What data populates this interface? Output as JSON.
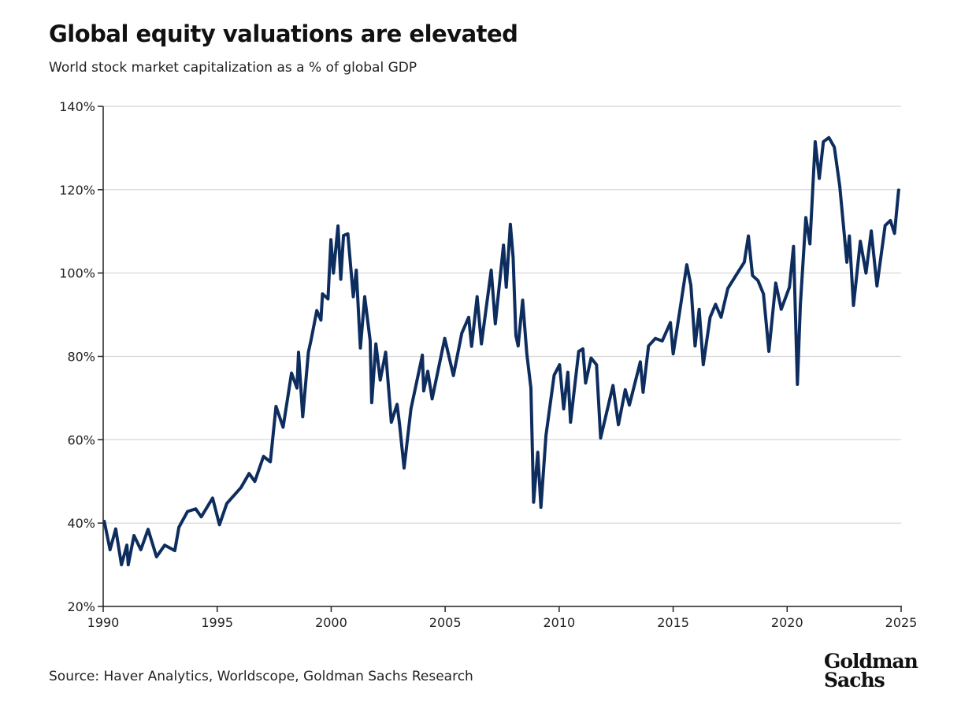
{
  "chart_data": {
    "type": "line",
    "title": "Global equity valuations are elevated",
    "subtitle": "World stock market capitalization as a % of global GDP",
    "source": "Source: Haver Analytics, Worldscope, Goldman Sachs Research",
    "logo": "Goldman Sachs",
    "xlabel": "",
    "ylabel": "",
    "xlim": [
      1990,
      2025
    ],
    "ylim": [
      20,
      140
    ],
    "x_ticks": [
      "1990",
      "1995",
      "2000",
      "2005",
      "2010",
      "2015",
      "2020",
      "2025"
    ],
    "y_ticks": [
      "20%",
      "40%",
      "60%",
      "80%",
      "100%",
      "120%",
      "140%"
    ],
    "grid": "horizontal",
    "line_color": "#0e2d5f",
    "series": [
      {
        "points": [
          [
            1990.05,
            40.4
          ],
          [
            1990.3,
            33.6
          ],
          [
            1990.55,
            38.6
          ],
          [
            1990.8,
            30
          ],
          [
            1991.04,
            34.7
          ],
          [
            1991.1,
            30
          ],
          [
            1991.35,
            37
          ],
          [
            1991.65,
            33.6
          ],
          [
            1991.97,
            38.5
          ],
          [
            1992.34,
            31.9
          ],
          [
            1992.7,
            34.7
          ],
          [
            1993.14,
            33.4
          ],
          [
            1993.32,
            39
          ],
          [
            1993.7,
            42.8
          ],
          [
            1994.06,
            43.4
          ],
          [
            1994.3,
            41.5
          ],
          [
            1994.8,
            46
          ],
          [
            1995.1,
            39.6
          ],
          [
            1995.42,
            44.7
          ],
          [
            1996.04,
            48.5
          ],
          [
            1996.4,
            51.9
          ],
          [
            1996.65,
            50
          ],
          [
            1997.03,
            56
          ],
          [
            1997.33,
            54.7
          ],
          [
            1997.58,
            68
          ],
          [
            1997.89,
            63
          ],
          [
            1998.26,
            76
          ],
          [
            1998.5,
            72.4
          ],
          [
            1998.57,
            81
          ],
          [
            1998.75,
            65.5
          ],
          [
            1999.0,
            81
          ],
          [
            1999.12,
            84
          ],
          [
            1999.37,
            91
          ],
          [
            1999.55,
            88.7
          ],
          [
            1999.62,
            95
          ],
          [
            1999.86,
            93.8
          ],
          [
            1999.99,
            108
          ],
          [
            2000.1,
            100
          ],
          [
            2000.3,
            111.3
          ],
          [
            2000.42,
            98.5
          ],
          [
            2000.54,
            109
          ],
          [
            2000.73,
            109.4
          ],
          [
            2000.97,
            94.3
          ],
          [
            2001.1,
            100.7
          ],
          [
            2001.28,
            82
          ],
          [
            2001.47,
            94.3
          ],
          [
            2001.71,
            83.8
          ],
          [
            2001.78,
            68.9
          ],
          [
            2001.96,
            83
          ],
          [
            2002.15,
            74.3
          ],
          [
            2002.39,
            81
          ],
          [
            2002.64,
            64.2
          ],
          [
            2002.89,
            68.5
          ],
          [
            2003.0,
            63.6
          ],
          [
            2003.2,
            53.2
          ],
          [
            2003.5,
            67.4
          ],
          [
            2004.0,
            80.3
          ],
          [
            2004.06,
            71.7
          ],
          [
            2004.24,
            76.4
          ],
          [
            2004.43,
            69.8
          ],
          [
            2004.98,
            84.3
          ],
          [
            2005.36,
            75.4
          ],
          [
            2005.73,
            85.6
          ],
          [
            2006.03,
            89.4
          ],
          [
            2006.16,
            82.4
          ],
          [
            2006.4,
            94.3
          ],
          [
            2006.59,
            83
          ],
          [
            2007.02,
            100.7
          ],
          [
            2007.2,
            87.8
          ],
          [
            2007.56,
            106.7
          ],
          [
            2007.68,
            96.6
          ],
          [
            2007.86,
            111.7
          ],
          [
            2007.98,
            103.8
          ],
          [
            2008.1,
            85
          ],
          [
            2008.2,
            82.5
          ],
          [
            2008.4,
            93.5
          ],
          [
            2008.58,
            80.6
          ],
          [
            2008.76,
            72.4
          ],
          [
            2008.88,
            45
          ],
          [
            2009.06,
            57
          ],
          [
            2009.2,
            43.8
          ],
          [
            2009.42,
            61
          ],
          [
            2009.78,
            75.5
          ],
          [
            2010.02,
            78
          ],
          [
            2010.2,
            67.4
          ],
          [
            2010.38,
            76.2
          ],
          [
            2010.5,
            64.2
          ],
          [
            2010.86,
            81.2
          ],
          [
            2011.04,
            81.8
          ],
          [
            2011.16,
            73.6
          ],
          [
            2011.4,
            79.6
          ],
          [
            2011.64,
            78
          ],
          [
            2011.82,
            60.4
          ],
          [
            2012.36,
            73
          ],
          [
            2012.6,
            63.6
          ],
          [
            2012.9,
            72
          ],
          [
            2013.08,
            68.3
          ],
          [
            2013.56,
            78.7
          ],
          [
            2013.68,
            71.4
          ],
          [
            2013.92,
            82.5
          ],
          [
            2014.22,
            84.3
          ],
          [
            2014.52,
            83.7
          ],
          [
            2014.88,
            88.1
          ],
          [
            2015.0,
            80.6
          ],
          [
            2015.3,
            91.3
          ],
          [
            2015.6,
            102
          ],
          [
            2015.78,
            97
          ],
          [
            2015.96,
            82.5
          ],
          [
            2016.14,
            91.3
          ],
          [
            2016.32,
            78
          ],
          [
            2016.62,
            89.4
          ],
          [
            2016.86,
            92.5
          ],
          [
            2017.1,
            89.4
          ],
          [
            2017.4,
            96.3
          ],
          [
            2017.82,
            100
          ],
          [
            2018.12,
            102.6
          ],
          [
            2018.3,
            108.9
          ],
          [
            2018.48,
            99.4
          ],
          [
            2018.72,
            98.2
          ],
          [
            2018.96,
            95
          ],
          [
            2019.2,
            81.2
          ],
          [
            2019.5,
            97.6
          ],
          [
            2019.74,
            91.3
          ],
          [
            2020.1,
            96.6
          ],
          [
            2020.28,
            106.4
          ],
          [
            2020.45,
            73.3
          ],
          [
            2020.58,
            92.5
          ],
          [
            2020.82,
            113.3
          ],
          [
            2021.0,
            107
          ],
          [
            2021.23,
            131.5
          ],
          [
            2021.41,
            122.7
          ],
          [
            2021.59,
            131.5
          ],
          [
            2021.83,
            132.5
          ],
          [
            2022.07,
            130.2
          ],
          [
            2022.31,
            120.8
          ],
          [
            2022.49,
            110.1
          ],
          [
            2022.62,
            102.6
          ],
          [
            2022.73,
            108.9
          ],
          [
            2022.91,
            92.2
          ],
          [
            2023.21,
            107.6
          ],
          [
            2023.46,
            100
          ],
          [
            2023.69,
            110.1
          ],
          [
            2023.94,
            96.9
          ],
          [
            2024.3,
            111.4
          ],
          [
            2024.53,
            112.6
          ],
          [
            2024.71,
            109.5
          ],
          [
            2024.89,
            119.9
          ]
        ]
      }
    ]
  }
}
